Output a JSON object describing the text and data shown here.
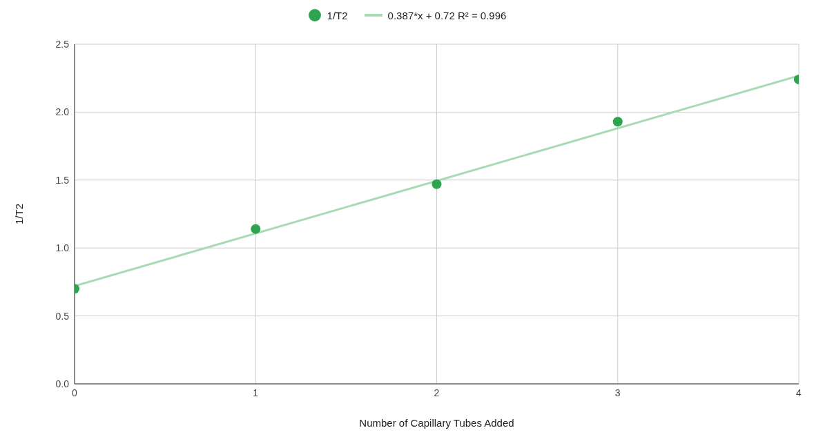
{
  "chart_data": {
    "type": "scatter",
    "xlabel": "Number of Capillary Tubes Added",
    "ylabel": "1/T2",
    "x": [
      0,
      1,
      2,
      3,
      4
    ],
    "series": [
      {
        "name": "1/T2",
        "color": "#2ea44f",
        "marker": "circle",
        "values": [
          0.7,
          1.14,
          1.47,
          1.93,
          2.24
        ]
      },
      {
        "name": "0.387*x + 0.72 R² = 0.996",
        "type": "line",
        "color": "#a8dab3",
        "marker": "none",
        "x": [
          0,
          4
        ],
        "values": [
          0.72,
          2.268
        ]
      }
    ],
    "xlim": [
      0,
      4
    ],
    "xticks": [
      0,
      1,
      2,
      3,
      4
    ],
    "ylim": [
      0,
      2.5
    ],
    "yticks": [
      {
        "value": 0,
        "label": "0.0"
      },
      0.5,
      {
        "value": 1,
        "label": "1.0"
      },
      1.5,
      {
        "value": 2,
        "label": "2.0"
      },
      2.5
    ],
    "grid": true,
    "legend": "top"
  }
}
